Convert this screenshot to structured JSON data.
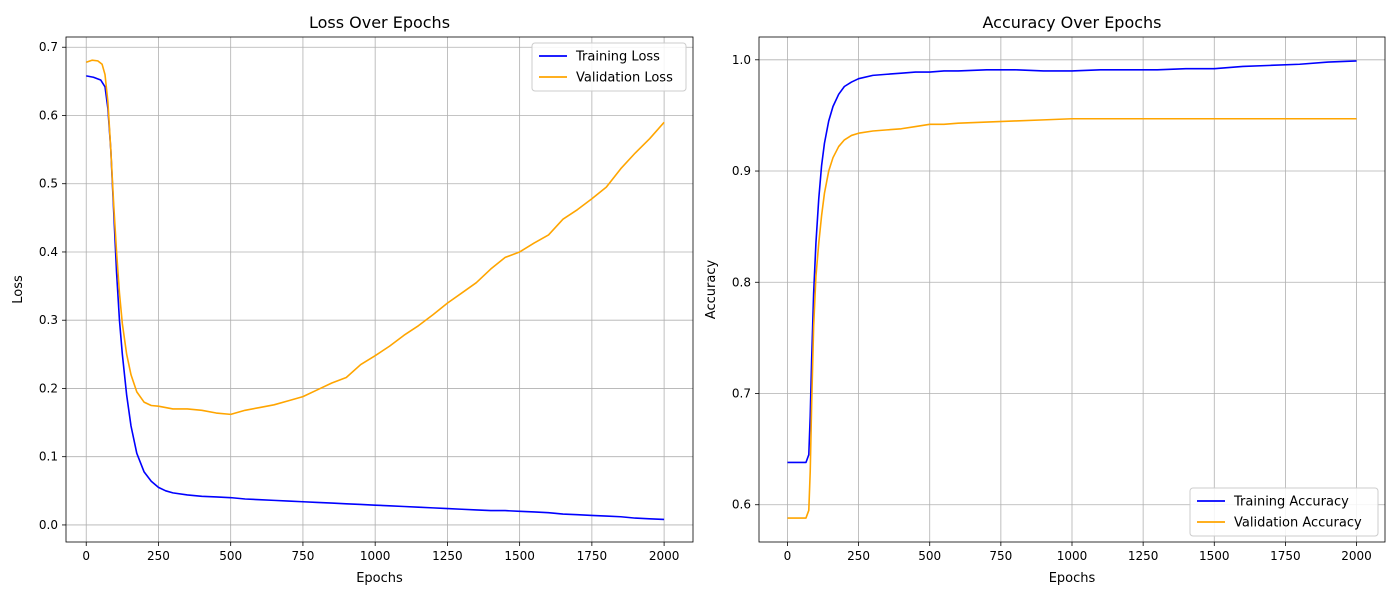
{
  "chart_data": [
    {
      "type": "line",
      "title": "Loss Over Epochs",
      "xlabel": "Epochs",
      "ylabel": "Loss",
      "xlim": [
        -70,
        2100
      ],
      "ylim": [
        -0.025,
        0.715
      ],
      "xticks": [
        0,
        250,
        500,
        750,
        1000,
        1250,
        1500,
        1750,
        2000
      ],
      "xtick_labels": [
        "0",
        "250",
        "500",
        "750",
        "1000",
        "1250",
        "1500",
        "1750",
        "2000"
      ],
      "yticks": [
        0.0,
        0.1,
        0.2,
        0.3,
        0.4,
        0.5,
        0.6,
        0.7
      ],
      "ytick_labels": [
        "0.0",
        "0.1",
        "0.2",
        "0.3",
        "0.4",
        "0.5",
        "0.6",
        "0.7"
      ],
      "grid": true,
      "legend_position": "upper-right",
      "series": [
        {
          "name": "Training Loss",
          "color": "#0000ff",
          "x": [
            0,
            25,
            50,
            65,
            75,
            85,
            95,
            105,
            115,
            125,
            140,
            155,
            175,
            200,
            225,
            250,
            275,
            300,
            350,
            400,
            450,
            500,
            550,
            600,
            650,
            700,
            750,
            800,
            850,
            900,
            950,
            1000,
            1050,
            1100,
            1150,
            1200,
            1250,
            1300,
            1350,
            1400,
            1450,
            1500,
            1550,
            1600,
            1650,
            1700,
            1750,
            1800,
            1850,
            1900,
            1950,
            2000
          ],
          "y": [
            0.658,
            0.656,
            0.652,
            0.642,
            0.61,
            0.55,
            0.46,
            0.37,
            0.3,
            0.25,
            0.19,
            0.145,
            0.105,
            0.078,
            0.064,
            0.055,
            0.05,
            0.047,
            0.044,
            0.042,
            0.041,
            0.04,
            0.038,
            0.037,
            0.036,
            0.035,
            0.034,
            0.033,
            0.032,
            0.031,
            0.03,
            0.029,
            0.028,
            0.027,
            0.026,
            0.025,
            0.024,
            0.023,
            0.022,
            0.021,
            0.021,
            0.02,
            0.019,
            0.018,
            0.016,
            0.015,
            0.014,
            0.013,
            0.012,
            0.01,
            0.009,
            0.008
          ]
        },
        {
          "name": "Validation Loss",
          "color": "#ffa500",
          "x": [
            0,
            20,
            40,
            55,
            65,
            75,
            85,
            95,
            105,
            115,
            125,
            140,
            155,
            175,
            200,
            225,
            250,
            300,
            350,
            400,
            450,
            500,
            550,
            600,
            650,
            700,
            750,
            800,
            850,
            900,
            950,
            1000,
            1050,
            1100,
            1150,
            1200,
            1250,
            1300,
            1350,
            1400,
            1450,
            1500,
            1550,
            1600,
            1650,
            1700,
            1750,
            1800,
            1850,
            1900,
            1950,
            2000
          ],
          "y": [
            0.678,
            0.681,
            0.68,
            0.675,
            0.66,
            0.62,
            0.55,
            0.47,
            0.4,
            0.34,
            0.295,
            0.25,
            0.22,
            0.195,
            0.18,
            0.175,
            0.174,
            0.17,
            0.17,
            0.168,
            0.164,
            0.162,
            0.168,
            0.172,
            0.176,
            0.182,
            0.188,
            0.198,
            0.208,
            0.216,
            0.235,
            0.248,
            0.262,
            0.278,
            0.292,
            0.308,
            0.325,
            0.34,
            0.355,
            0.375,
            0.392,
            0.4,
            0.413,
            0.425,
            0.448,
            0.462,
            0.478,
            0.495,
            0.522,
            0.545,
            0.566,
            0.59
          ]
        }
      ]
    },
    {
      "type": "line",
      "title": "Accuracy Over Epochs",
      "xlabel": "Epochs",
      "ylabel": "Accuracy",
      "xlim": [
        -100,
        2100
      ],
      "ylim": [
        0.5665,
        1.0205
      ],
      "xticks": [
        0,
        250,
        500,
        750,
        1000,
        1250,
        1500,
        1750,
        2000
      ],
      "xtick_labels": [
        "0",
        "250",
        "500",
        "750",
        "1000",
        "1250",
        "1500",
        "1750",
        "2000"
      ],
      "yticks": [
        0.6,
        0.7,
        0.8,
        0.9,
        1.0
      ],
      "ytick_labels": [
        "0.6",
        "0.7",
        "0.8",
        "0.9",
        "1.0"
      ],
      "grid": true,
      "legend_position": "lower-right",
      "series": [
        {
          "name": "Training Accuracy",
          "color": "#0000ff",
          "x": [
            0,
            40,
            65,
            75,
            80,
            85,
            92,
            100,
            110,
            120,
            130,
            145,
            160,
            180,
            200,
            225,
            250,
            300,
            350,
            400,
            450,
            500,
            550,
            600,
            700,
            800,
            900,
            1000,
            1100,
            1200,
            1300,
            1400,
            1500,
            1600,
            1700,
            1800,
            1900,
            2000
          ],
          "y": [
            0.638,
            0.638,
            0.638,
            0.645,
            0.68,
            0.73,
            0.79,
            0.835,
            0.875,
            0.905,
            0.925,
            0.945,
            0.958,
            0.969,
            0.976,
            0.98,
            0.983,
            0.986,
            0.987,
            0.988,
            0.989,
            0.989,
            0.99,
            0.99,
            0.991,
            0.991,
            0.99,
            0.99,
            0.991,
            0.991,
            0.991,
            0.992,
            0.992,
            0.994,
            0.995,
            0.996,
            0.998,
            0.999
          ]
        },
        {
          "name": "Validation Accuracy",
          "color": "#ffa500",
          "x": [
            0,
            40,
            65,
            75,
            80,
            85,
            92,
            100,
            110,
            120,
            130,
            145,
            160,
            180,
            200,
            225,
            250,
            300,
            350,
            400,
            450,
            500,
            550,
            600,
            700,
            800,
            900,
            1000,
            1100,
            1200,
            1300,
            1400,
            1500,
            1600,
            1700,
            1800,
            1900,
            2000
          ],
          "y": [
            0.588,
            0.588,
            0.588,
            0.595,
            0.63,
            0.69,
            0.76,
            0.805,
            0.835,
            0.86,
            0.88,
            0.9,
            0.912,
            0.922,
            0.928,
            0.932,
            0.934,
            0.936,
            0.937,
            0.938,
            0.94,
            0.942,
            0.942,
            0.943,
            0.944,
            0.945,
            0.946,
            0.947,
            0.947,
            0.947,
            0.947,
            0.947,
            0.947,
            0.947,
            0.947,
            0.947,
            0.947,
            0.947
          ]
        }
      ]
    }
  ]
}
